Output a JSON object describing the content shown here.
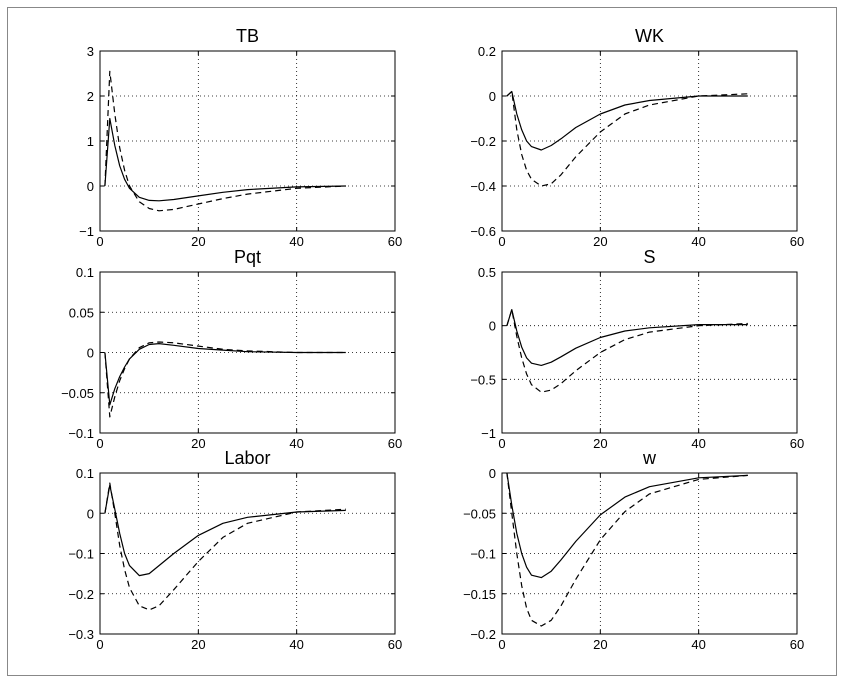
{
  "chart_data": [
    {
      "type": "line",
      "title": "TB",
      "xlim": [
        0,
        60
      ],
      "ylim": [
        -1,
        3
      ],
      "xticks": [
        0,
        20,
        40,
        60
      ],
      "yticks": [
        -1,
        0,
        1,
        2,
        3
      ],
      "xtick_labels": [
        "0",
        "20",
        "40",
        "60"
      ],
      "ytick_labels": [
        "−1",
        "0",
        "1",
        "2",
        "3"
      ],
      "grid": true,
      "series": [
        {
          "style": "solid",
          "x": [
            1,
            2,
            3,
            4,
            5,
            6,
            8,
            10,
            12,
            15,
            20,
            25,
            30,
            40,
            50
          ],
          "y": [
            0,
            1.5,
            0.9,
            0.45,
            0.15,
            -0.05,
            -0.25,
            -0.32,
            -0.33,
            -0.3,
            -0.22,
            -0.14,
            -0.08,
            -0.02,
            0
          ]
        },
        {
          "style": "dashed",
          "x": [
            1,
            2,
            3,
            4,
            5,
            6,
            8,
            10,
            12,
            15,
            20,
            25,
            30,
            40,
            50
          ],
          "y": [
            0,
            2.55,
            1.6,
            0.85,
            0.35,
            0.0,
            -0.35,
            -0.5,
            -0.55,
            -0.52,
            -0.4,
            -0.28,
            -0.18,
            -0.05,
            0
          ]
        }
      ]
    },
    {
      "type": "line",
      "title": "WK",
      "xlim": [
        0,
        60
      ],
      "ylim": [
        -0.6,
        0.2
      ],
      "xticks": [
        0,
        20,
        40,
        60
      ],
      "yticks": [
        -0.6,
        -0.4,
        -0.2,
        0,
        0.2
      ],
      "xtick_labels": [
        "0",
        "20",
        "40",
        "60"
      ],
      "ytick_labels": [
        "−0.6",
        "−0.4",
        "−0.2",
        "0",
        "0.2"
      ],
      "grid": true,
      "series": [
        {
          "style": "solid",
          "x": [
            1,
            2,
            3,
            4,
            5,
            6,
            8,
            10,
            12,
            15,
            20,
            25,
            30,
            40,
            50
          ],
          "y": [
            0,
            0.02,
            -0.08,
            -0.15,
            -0.2,
            -0.225,
            -0.24,
            -0.22,
            -0.19,
            -0.14,
            -0.08,
            -0.04,
            -0.02,
            0,
            0
          ]
        },
        {
          "style": "dashed",
          "x": [
            1,
            2,
            3,
            4,
            5,
            6,
            8,
            10,
            12,
            15,
            20,
            25,
            30,
            40,
            50
          ],
          "y": [
            0,
            0.02,
            -0.15,
            -0.26,
            -0.33,
            -0.37,
            -0.4,
            -0.39,
            -0.35,
            -0.27,
            -0.16,
            -0.08,
            -0.04,
            0,
            0.01
          ]
        }
      ]
    },
    {
      "type": "line",
      "title": "Pqt",
      "xlim": [
        0,
        60
      ],
      "ylim": [
        -0.1,
        0.1
      ],
      "xticks": [
        0,
        20,
        40,
        60
      ],
      "yticks": [
        -0.1,
        -0.05,
        0,
        0.05,
        0.1
      ],
      "xtick_labels": [
        "0",
        "20",
        "40",
        "60"
      ],
      "ytick_labels": [
        "−0.1",
        "−0.05",
        "0",
        "0.05",
        "0.1"
      ],
      "grid": true,
      "series": [
        {
          "style": "solid",
          "x": [
            1,
            2,
            3,
            4,
            5,
            6,
            8,
            10,
            12,
            15,
            20,
            25,
            30,
            40,
            50
          ],
          "y": [
            0,
            -0.065,
            -0.045,
            -0.03,
            -0.018,
            -0.008,
            0.004,
            0.01,
            0.011,
            0.009,
            0.005,
            0.003,
            0.001,
            0,
            0
          ]
        },
        {
          "style": "dashed",
          "x": [
            1,
            2,
            3,
            4,
            5,
            6,
            8,
            10,
            12,
            15,
            20,
            25,
            30,
            40,
            50
          ],
          "y": [
            0,
            -0.08,
            -0.055,
            -0.035,
            -0.02,
            -0.008,
            0.006,
            0.012,
            0.013,
            0.012,
            0.008,
            0.004,
            0.002,
            0,
            0
          ]
        }
      ]
    },
    {
      "type": "line",
      "title": "S",
      "xlim": [
        0,
        60
      ],
      "ylim": [
        -1,
        0.5
      ],
      "xticks": [
        0,
        20,
        40,
        60
      ],
      "yticks": [
        -1,
        -0.5,
        0,
        0.5
      ],
      "xtick_labels": [
        "0",
        "20",
        "40",
        "60"
      ],
      "ytick_labels": [
        "−1",
        "−0.5",
        "0",
        "0.5"
      ],
      "grid": true,
      "series": [
        {
          "style": "solid",
          "x": [
            1,
            2,
            3,
            4,
            5,
            6,
            8,
            10,
            12,
            15,
            20,
            25,
            30,
            40,
            50
          ],
          "y": [
            0,
            0.15,
            -0.05,
            -0.2,
            -0.3,
            -0.35,
            -0.37,
            -0.34,
            -0.29,
            -0.21,
            -0.11,
            -0.05,
            -0.02,
            0.01,
            0.01
          ]
        },
        {
          "style": "dashed",
          "x": [
            1,
            2,
            3,
            4,
            5,
            6,
            8,
            10,
            12,
            15,
            20,
            25,
            30,
            40,
            50
          ],
          "y": [
            0,
            0.15,
            -0.1,
            -0.3,
            -0.45,
            -0.55,
            -0.62,
            -0.6,
            -0.54,
            -0.42,
            -0.25,
            -0.13,
            -0.06,
            0,
            0.02
          ]
        }
      ]
    },
    {
      "type": "line",
      "title": "Labor",
      "xlim": [
        0,
        60
      ],
      "ylim": [
        -0.3,
        0.1
      ],
      "xticks": [
        0,
        20,
        40,
        60
      ],
      "yticks": [
        -0.3,
        -0.2,
        -0.1,
        0,
        0.1
      ],
      "xtick_labels": [
        "0",
        "20",
        "40",
        "60"
      ],
      "ytick_labels": [
        "−0.3",
        "−0.2",
        "−0.1",
        "0",
        "0.1"
      ],
      "grid": true,
      "series": [
        {
          "style": "solid",
          "x": [
            1,
            2,
            3,
            4,
            5,
            6,
            8,
            10,
            12,
            15,
            20,
            25,
            30,
            40,
            50
          ],
          "y": [
            0,
            0.07,
            0.01,
            -0.05,
            -0.1,
            -0.13,
            -0.155,
            -0.15,
            -0.13,
            -0.1,
            -0.055,
            -0.025,
            -0.01,
            0.003,
            0.007
          ]
        },
        {
          "style": "dashed",
          "x": [
            1,
            2,
            3,
            4,
            5,
            6,
            8,
            10,
            12,
            15,
            20,
            25,
            30,
            40,
            50
          ],
          "y": [
            0,
            0.075,
            0.0,
            -0.08,
            -0.14,
            -0.185,
            -0.23,
            -0.24,
            -0.23,
            -0.19,
            -0.12,
            -0.06,
            -0.025,
            0.003,
            0.01
          ]
        }
      ]
    },
    {
      "type": "line",
      "title": "w",
      "xlim": [
        0,
        60
      ],
      "ylim": [
        -0.2,
        0
      ],
      "xticks": [
        0,
        20,
        40,
        60
      ],
      "yticks": [
        -0.2,
        -0.15,
        -0.1,
        -0.05,
        0
      ],
      "xtick_labels": [
        "0",
        "20",
        "40",
        "60"
      ],
      "ytick_labels": [
        "−0.2",
        "−0.15",
        "−0.1",
        "−0.05",
        "0"
      ],
      "grid": true,
      "series": [
        {
          "style": "solid",
          "x": [
            1,
            2,
            3,
            4,
            5,
            6,
            8,
            10,
            12,
            15,
            20,
            25,
            30,
            40,
            50
          ],
          "y": [
            0,
            -0.04,
            -0.075,
            -0.1,
            -0.117,
            -0.127,
            -0.13,
            -0.122,
            -0.108,
            -0.085,
            -0.052,
            -0.03,
            -0.017,
            -0.006,
            -0.003
          ]
        },
        {
          "style": "dashed",
          "x": [
            1,
            2,
            3,
            4,
            5,
            6,
            8,
            10,
            12,
            15,
            20,
            25,
            30,
            40,
            50
          ],
          "y": [
            0,
            -0.05,
            -0.1,
            -0.14,
            -0.168,
            -0.183,
            -0.19,
            -0.183,
            -0.165,
            -0.132,
            -0.083,
            -0.048,
            -0.026,
            -0.008,
            -0.003
          ]
        }
      ]
    }
  ]
}
